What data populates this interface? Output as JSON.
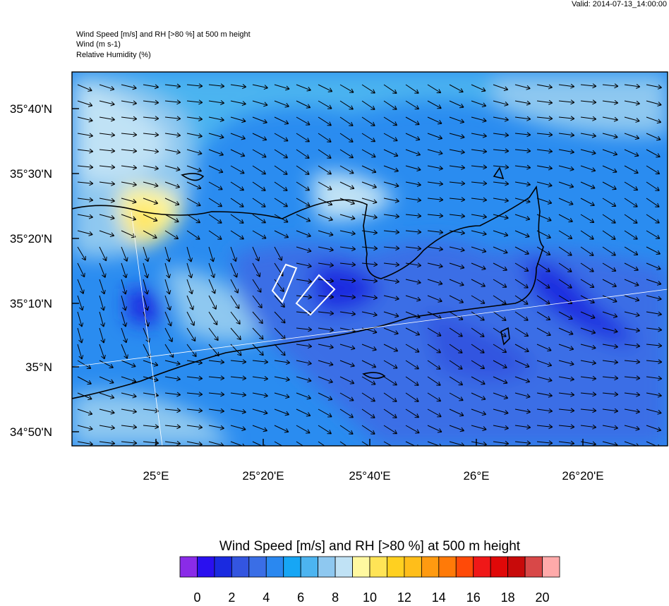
{
  "header": {
    "valid": "Valid: 2014-07-13_14:00:00",
    "lines": [
      "Wind Speed [m/s] and RH [>80 %] at 500 m height",
      "Wind   (m s-1)",
      "Relative Humidity   (%)"
    ]
  },
  "map": {
    "lat_labels": [
      "35°40'N",
      "35°30'N",
      "35°20'N",
      "35°10'N",
      "35°N",
      "34°50'N"
    ],
    "lon_labels": [
      "25°E",
      "25°20'E",
      "25°40'E",
      "26°E",
      "26°20'E"
    ]
  },
  "colorbar": {
    "title": "Wind Speed [m/s] and RH [>80 %] at 500 m height",
    "colors": [
      "#8a2be8",
      "#2a10f0",
      "#1a2ae0",
      "#3355e0",
      "#3a6ee6",
      "#2a88f0",
      "#16a6f5",
      "#4cb4f0",
      "#8ec8f0",
      "#c0e2f5",
      "#fff8a0",
      "#ffe456",
      "#ffd020",
      "#ffbe1a",
      "#ff9a10",
      "#ff7a08",
      "#ff4a08",
      "#f01818",
      "#e00808",
      "#c80a0a",
      "#d84848",
      "#ffaaaa"
    ],
    "lim": [
      -1,
      21
    ],
    "ticks": [
      0,
      2,
      4,
      6,
      8,
      10,
      12,
      14,
      16,
      18,
      20
    ]
  }
}
